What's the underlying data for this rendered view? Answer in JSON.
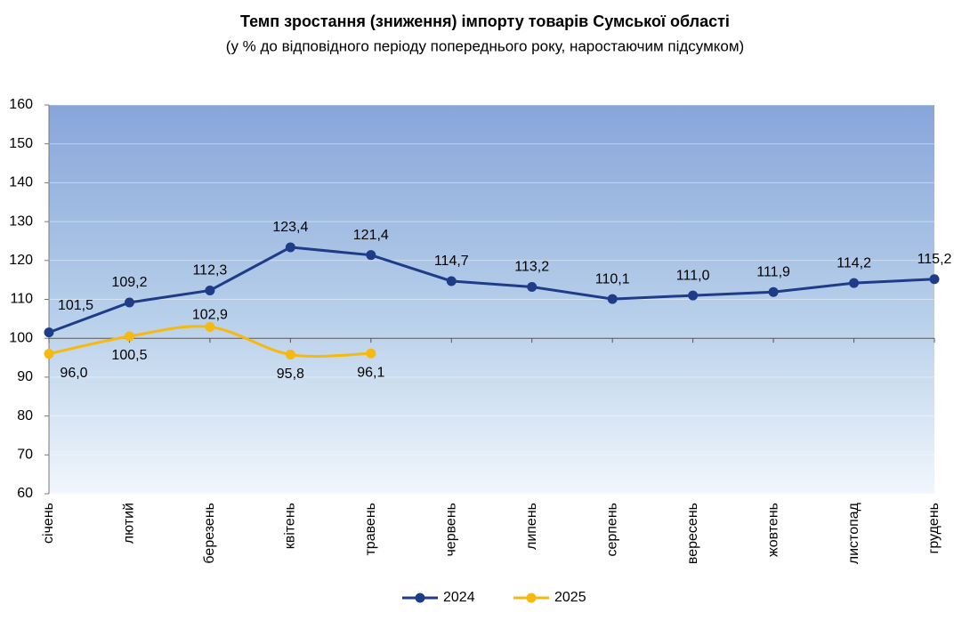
{
  "chart_data": {
    "type": "line",
    "title": "Темп зростання (зниження) імпорту товарів Сумської області",
    "subtitle": "(у % до відповідного періоду попереднього року, наростаючим підсумком)",
    "categories": [
      "січень",
      "лютий",
      "березень",
      "квітень",
      "травень",
      "червень",
      "липень",
      "серпень",
      "вересень",
      "жовтень",
      "листопад",
      "грудень"
    ],
    "series": [
      {
        "name": "2024",
        "color": "#1f3c88",
        "smooth": false,
        "values": [
          101.5,
          109.2,
          112.3,
          123.4,
          121.4,
          114.7,
          113.2,
          110.1,
          111.0,
          111.9,
          114.2,
          115.2
        ],
        "value_labels": [
          "101,5",
          "109,2",
          "112,3",
          "123,4",
          "121,4",
          "114,7",
          "113,2",
          "110,1",
          "111,0",
          "111,9",
          "114,2",
          "115,2"
        ]
      },
      {
        "name": "2025",
        "color": "#f5b910",
        "smooth": true,
        "values": [
          96.0,
          100.5,
          102.9,
          95.8,
          96.1,
          null,
          null,
          null,
          null,
          null,
          null,
          null
        ],
        "value_labels": [
          "96,0",
          "100,5",
          "102,9",
          "95,8",
          "96,1",
          null,
          null,
          null,
          null,
          null,
          null,
          null
        ]
      }
    ],
    "ylim": [
      60,
      160
    ],
    "yticks": [
      60,
      70,
      80,
      90,
      100,
      110,
      120,
      130,
      140,
      150,
      160
    ],
    "xaxis_crosses": 100,
    "grid": true,
    "legend": "bottom"
  }
}
